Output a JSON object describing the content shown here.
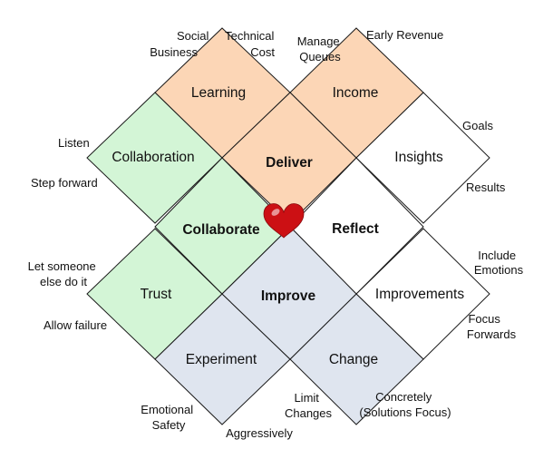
{
  "colors": {
    "peach": "#fcd6b6",
    "green": "#d3f5d6",
    "blue": "#dfe5ef",
    "white": "#ffffff",
    "heart": "#cc1014",
    "outline": "#1a1a1a"
  },
  "outer": {
    "learning": "Learning",
    "income": "Income",
    "collaboration": "Collaboration",
    "insights": "Insights",
    "trust": "Trust",
    "improvements": "Improvements",
    "experiment": "Experiment",
    "change": "Change"
  },
  "inner": {
    "deliver": "Deliver",
    "collaborate": "Collaborate",
    "reflect": "Reflect",
    "improve": "Improve"
  },
  "notes": {
    "social_business": [
      "Social",
      "Business"
    ],
    "technical_cost": [
      "Technical",
      "Cost"
    ],
    "manage_queues": [
      "Manage",
      "Queues"
    ],
    "early_revenue": "Early Revenue",
    "listen": "Listen",
    "step_forward": "Step forward",
    "goals": "Goals",
    "results": "Results",
    "let_someone": [
      "Let someone",
      "else do it"
    ],
    "include_emotions": [
      "Include",
      "Emotions"
    ],
    "allow_failure": "Allow failure",
    "focus_forwards": [
      "Focus",
      "Forwards"
    ],
    "emotional_safety": [
      "Emotional",
      "Safety"
    ],
    "limit_changes": [
      "Limit",
      "Changes"
    ],
    "concretely": [
      "Concretely",
      "(Solutions Focus)"
    ],
    "aggressively": "Aggressively"
  },
  "heart_icon": "heart-icon"
}
